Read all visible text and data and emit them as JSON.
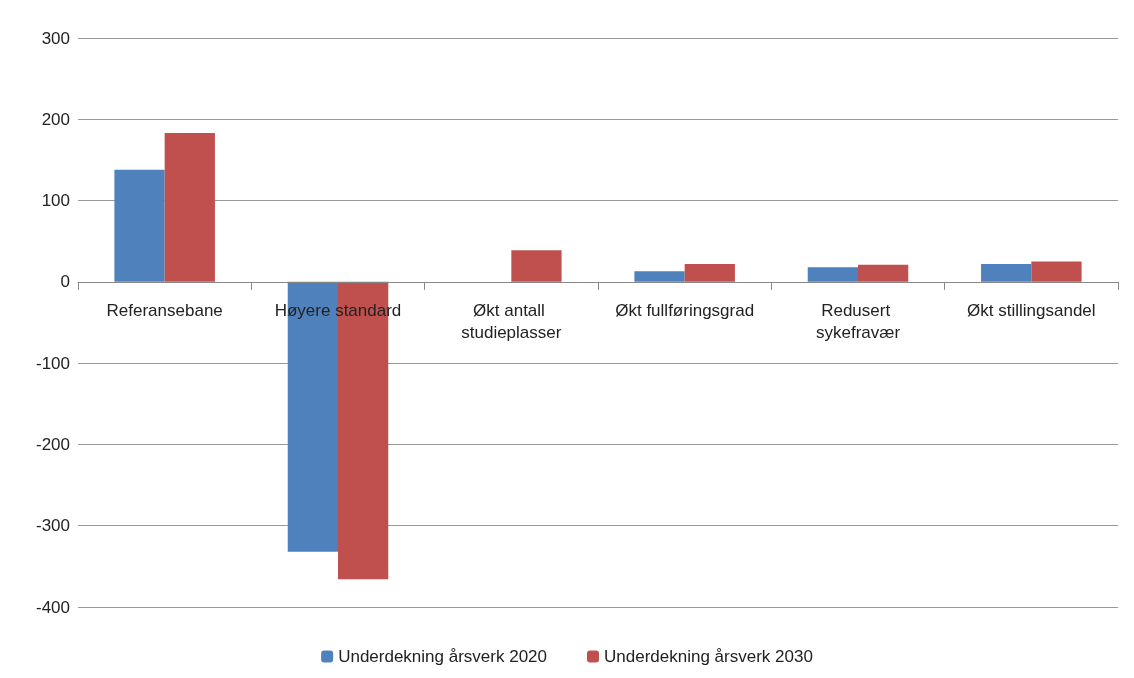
{
  "chart_data": {
    "type": "bar",
    "categories": [
      "Referansebane",
      "Høyere standard",
      "Økt antall studieplasser",
      "Økt fullføringsgrad",
      "Redusert sykefravær",
      "Økt stillingsandel"
    ],
    "series": [
      {
        "name": "Underdekning årsverk 2020",
        "color": "#4f81bd",
        "values": [
          138,
          -332,
          0,
          13,
          18,
          22
        ]
      },
      {
        "name": "Underdekning årsverk 2030",
        "color": "#c0504d",
        "values": [
          183,
          -366,
          39,
          22,
          21,
          25
        ]
      }
    ],
    "ylim": [
      -400,
      300
    ],
    "yticks": [
      -400,
      -300,
      -200,
      -100,
      0,
      100,
      200,
      300
    ],
    "grid": "y",
    "legend": "bottom"
  }
}
